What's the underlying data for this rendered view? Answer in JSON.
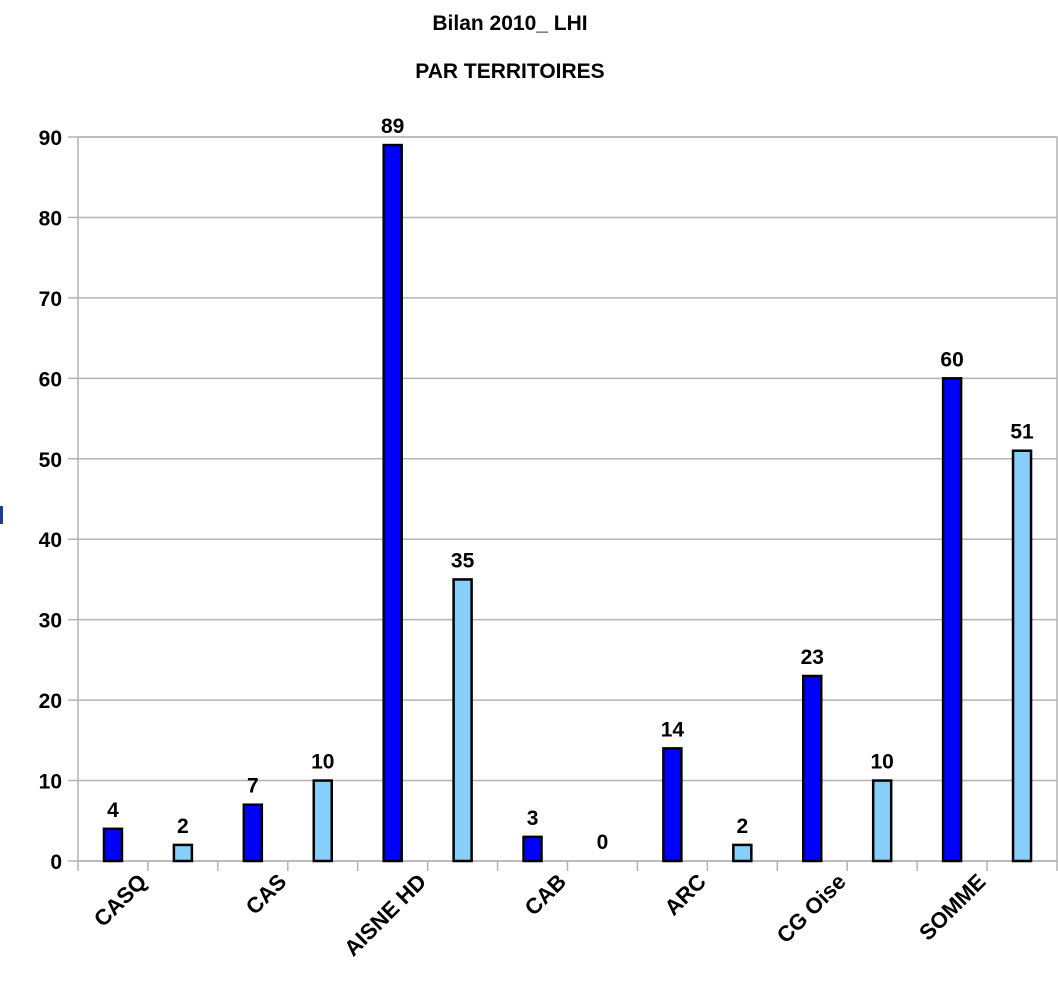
{
  "chart_data": {
    "type": "bar",
    "title": "Bilan 2010_ LHI",
    "subtitle": "PAR TERRITOIRES",
    "categories": [
      "CASQ",
      "CAS",
      "AISNE HD",
      "CAB",
      "ARC",
      "CG Oise",
      "SOMME"
    ],
    "series": [
      {
        "color": "#0000ff",
        "values": [
          4,
          7,
          89,
          3,
          14,
          23,
          60
        ]
      },
      {
        "color": "#87cefa",
        "values": [
          2,
          10,
          35,
          0,
          2,
          10,
          51
        ]
      }
    ],
    "ylim": [
      0,
      90
    ],
    "yticks": [
      0,
      10,
      20,
      30,
      40,
      50,
      60,
      70,
      80,
      90
    ],
    "grid": true,
    "data_labels": true
  }
}
